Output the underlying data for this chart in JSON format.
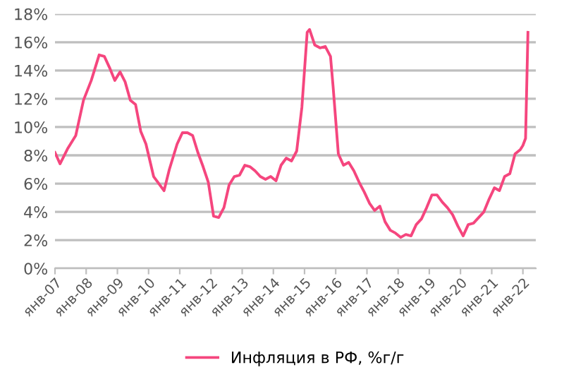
{
  "chart_data": {
    "type": "line",
    "x": [
      "2007-01",
      "2007-03",
      "2007-06",
      "2007-09",
      "2007-12",
      "2008-03",
      "2008-06",
      "2008-08",
      "2008-10",
      "2008-12",
      "2009-02",
      "2009-04",
      "2009-06",
      "2009-08",
      "2009-10",
      "2009-12",
      "2010-03",
      "2010-05",
      "2010-07",
      "2010-09",
      "2010-12",
      "2011-02",
      "2011-04",
      "2011-06",
      "2011-08",
      "2011-10",
      "2011-12",
      "2012-02",
      "2012-04",
      "2012-06",
      "2012-08",
      "2012-10",
      "2012-12",
      "2013-02",
      "2013-04",
      "2013-06",
      "2013-08",
      "2013-10",
      "2013-12",
      "2014-02",
      "2014-04",
      "2014-06",
      "2014-08",
      "2014-10",
      "2014-12",
      "2015-02",
      "2015-03",
      "2015-05",
      "2015-07",
      "2015-09",
      "2015-11",
      "2015-12",
      "2016-02",
      "2016-04",
      "2016-06",
      "2016-08",
      "2016-10",
      "2016-12",
      "2017-02",
      "2017-04",
      "2017-06",
      "2017-08",
      "2017-10",
      "2017-12",
      "2018-02",
      "2018-04",
      "2018-06",
      "2018-08",
      "2018-10",
      "2018-12",
      "2019-02",
      "2019-04",
      "2019-06",
      "2019-08",
      "2019-10",
      "2019-12",
      "2020-02",
      "2020-04",
      "2020-06",
      "2020-08",
      "2020-10",
      "2020-12",
      "2021-02",
      "2021-04",
      "2021-06",
      "2021-08",
      "2021-10",
      "2021-12",
      "2022-01",
      "2022-02",
      "2022-03"
    ],
    "series": [
      {
        "name": "Инфляция в РФ, %г/г",
        "color": "#f5467e",
        "values": [
          8.2,
          7.4,
          8.5,
          9.4,
          11.9,
          13.3,
          15.1,
          15.0,
          14.2,
          13.3,
          13.9,
          13.2,
          11.9,
          11.6,
          9.7,
          8.8,
          6.5,
          6.0,
          5.5,
          7.0,
          8.8,
          9.6,
          9.6,
          9.4,
          8.2,
          7.2,
          6.1,
          3.7,
          3.6,
          4.3,
          5.9,
          6.5,
          6.6,
          7.3,
          7.2,
          6.9,
          6.5,
          6.3,
          6.5,
          6.2,
          7.3,
          7.8,
          7.6,
          8.3,
          11.4,
          16.7,
          16.9,
          15.8,
          15.6,
          15.7,
          15.0,
          12.9,
          8.1,
          7.3,
          7.5,
          6.9,
          6.1,
          5.4,
          4.6,
          4.1,
          4.4,
          3.3,
          2.7,
          2.5,
          2.2,
          2.4,
          2.3,
          3.1,
          3.5,
          4.3,
          5.2,
          5.2,
          4.7,
          4.3,
          3.8,
          3.0,
          2.3,
          3.1,
          3.2,
          3.6,
          4.0,
          4.9,
          5.7,
          5.5,
          6.5,
          6.7,
          8.1,
          8.4,
          8.7,
          9.2,
          16.7
        ]
      }
    ],
    "xlim": [
      "2007-01",
      "2022-06"
    ],
    "xticks": [
      {
        "value": "2007-01",
        "label": "янв-07"
      },
      {
        "value": "2008-01",
        "label": "янв-08"
      },
      {
        "value": "2009-01",
        "label": "янв-09"
      },
      {
        "value": "2010-01",
        "label": "янв-10"
      },
      {
        "value": "2011-01",
        "label": "янв-11"
      },
      {
        "value": "2012-01",
        "label": "янв-12"
      },
      {
        "value": "2013-01",
        "label": "янв-13"
      },
      {
        "value": "2014-01",
        "label": "янв-14"
      },
      {
        "value": "2015-01",
        "label": "янв-15"
      },
      {
        "value": "2016-01",
        "label": "янв-16"
      },
      {
        "value": "2017-01",
        "label": "янв-17"
      },
      {
        "value": "2018-01",
        "label": "янв-18"
      },
      {
        "value": "2019-01",
        "label": "янв-19"
      },
      {
        "value": "2020-01",
        "label": "янв-20"
      },
      {
        "value": "2021-01",
        "label": "янв-21"
      },
      {
        "value": "2022-01",
        "label": "янв-22"
      }
    ],
    "ylim": [
      0,
      18
    ],
    "yticks": [
      {
        "value": 0,
        "label": "0%"
      },
      {
        "value": 2,
        "label": "2%"
      },
      {
        "value": 4,
        "label": "4%"
      },
      {
        "value": 6,
        "label": "6%"
      },
      {
        "value": 8,
        "label": "8%"
      },
      {
        "value": 10,
        "label": "10%"
      },
      {
        "value": 12,
        "label": "12%"
      },
      {
        "value": 14,
        "label": "14%"
      },
      {
        "value": 16,
        "label": "16%"
      },
      {
        "value": 18,
        "label": "18%"
      }
    ],
    "grid": "y",
    "legend": "bottom"
  }
}
